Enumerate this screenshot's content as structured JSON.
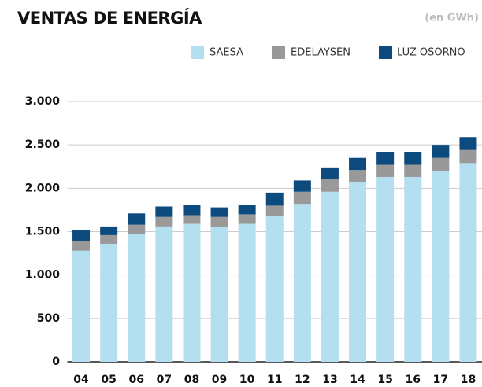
{
  "chart_data": {
    "type": "stacked_bar",
    "title": "VENTAS DE ENERGÍA",
    "subtitle": "(en GWh)",
    "categories": [
      "04",
      "05",
      "06",
      "07",
      "08",
      "09",
      "10",
      "11",
      "12",
      "13",
      "14",
      "15",
      "16",
      "17",
      "18"
    ],
    "series": [
      {
        "name": "SAESA",
        "color": "#b3dff0",
        "values": [
          1280,
          1360,
          1470,
          1560,
          1590,
          1550,
          1590,
          1680,
          1820,
          1960,
          2070,
          2130,
          2130,
          2200,
          2290
        ]
      },
      {
        "name": "EDELAYSEN",
        "color": "#999999",
        "values": [
          110,
          100,
          110,
          110,
          100,
          120,
          110,
          120,
          140,
          150,
          140,
          140,
          140,
          150,
          150
        ]
      },
      {
        "name": "LUZ OSORNO",
        "color": "#0d4a7e",
        "values": [
          130,
          100,
          130,
          120,
          120,
          110,
          110,
          150,
          130,
          130,
          140,
          150,
          150,
          150,
          150
        ]
      }
    ],
    "ylim": [
      0,
      3000
    ],
    "yticks": [
      0,
      500,
      {
        "value": 1000,
        "label": "1.000"
      },
      {
        "value": 1500,
        "label": "1.500"
      },
      {
        "value": 2000,
        "label": "2.000"
      },
      {
        "value": 2500,
        "label": "2.500"
      },
      {
        "value": 3000,
        "label": "3.000"
      }
    ],
    "grid": true
  }
}
